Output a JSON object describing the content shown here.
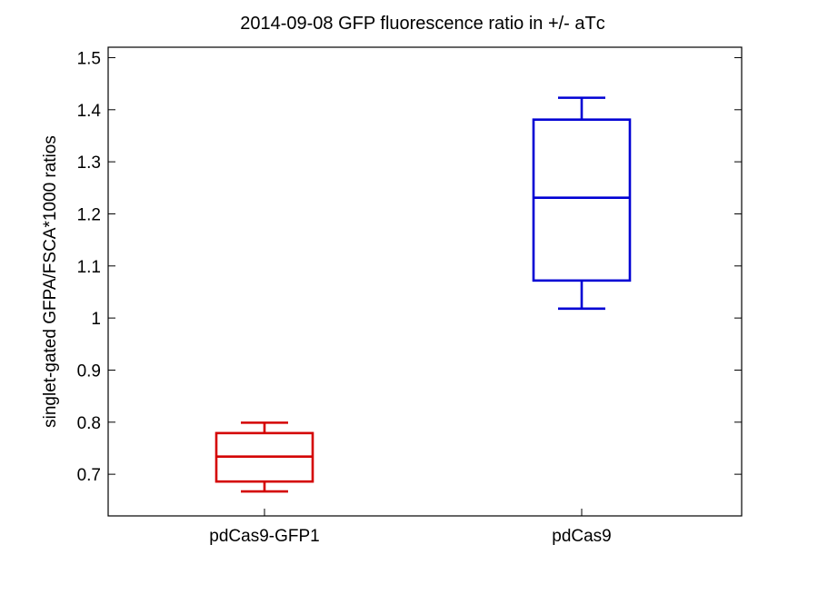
{
  "chart_data": {
    "type": "box",
    "title": "2014-09-08 GFP fluorescence ratio in +/- aTс",
    "xlabel": "",
    "ylabel": "singlet-gated GFPA/FSCA*1000 ratios",
    "ylim": [
      0.62,
      1.52
    ],
    "yticks": [
      "0.7",
      "0.8",
      "0.9",
      "1",
      "1.1",
      "1.2",
      "1.3",
      "1.4",
      "1.5"
    ],
    "grid": false,
    "categories": [
      "pdCas9-GFP1",
      "pdCas9"
    ],
    "series": [
      {
        "category": "pdCas9-GFP1",
        "color": "#d40000",
        "min": 0.667,
        "q1": 0.686,
        "median": 0.734,
        "q3": 0.779,
        "max": 0.799
      },
      {
        "category": "pdCas9",
        "color": "#0000d4",
        "min": 1.018,
        "q1": 1.072,
        "median": 1.231,
        "q3": 1.381,
        "max": 1.423
      }
    ]
  }
}
